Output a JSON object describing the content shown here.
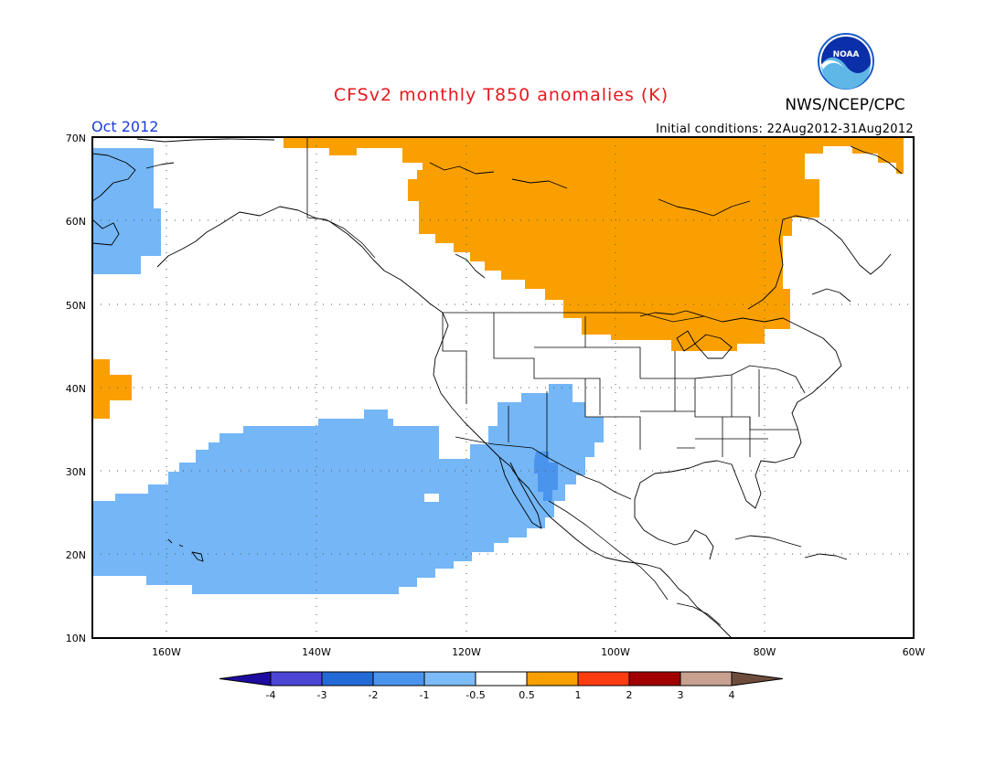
{
  "header": {
    "title": "CFSv2 monthly T850 anomalies (K)",
    "agency": "NWS/NCEP/CPC",
    "logo_text": "NOAA",
    "month": "Oct 2012",
    "initial_conditions": "Initial conditions: 22Aug2012-31Aug2012"
  },
  "map": {
    "projection": "cylindrical-equidistant",
    "lon_range": [
      -170,
      -60
    ],
    "lat_range": [
      10,
      70
    ],
    "lat_labels": [
      "10N",
      "20N",
      "30N",
      "40N",
      "50N",
      "60N",
      "70N"
    ],
    "lon_labels": [
      "160W",
      "140W",
      "120W",
      "100W",
      "80W",
      "60W"
    ],
    "grid": "dotted",
    "colors": {
      "warm_0_5_to_1": "#f9a000",
      "cool_-1_to_-0_5": "#74b6f6",
      "cool_-2_to_-1": "#4a94ee"
    }
  },
  "colorbar": {
    "labels": [
      "-4",
      "-3",
      "-2",
      "-1",
      "-0.5",
      "0.5",
      "1",
      "2",
      "3",
      "4"
    ],
    "colors": [
      "#1e0ca0",
      "#4d45d6",
      "#246ad6",
      "#4a94ee",
      "#7cbaf8",
      "#ffffff",
      "#f9a000",
      "#ff3b10",
      "#a00000",
      "#c8a090",
      "#6e4c3c"
    ]
  }
}
